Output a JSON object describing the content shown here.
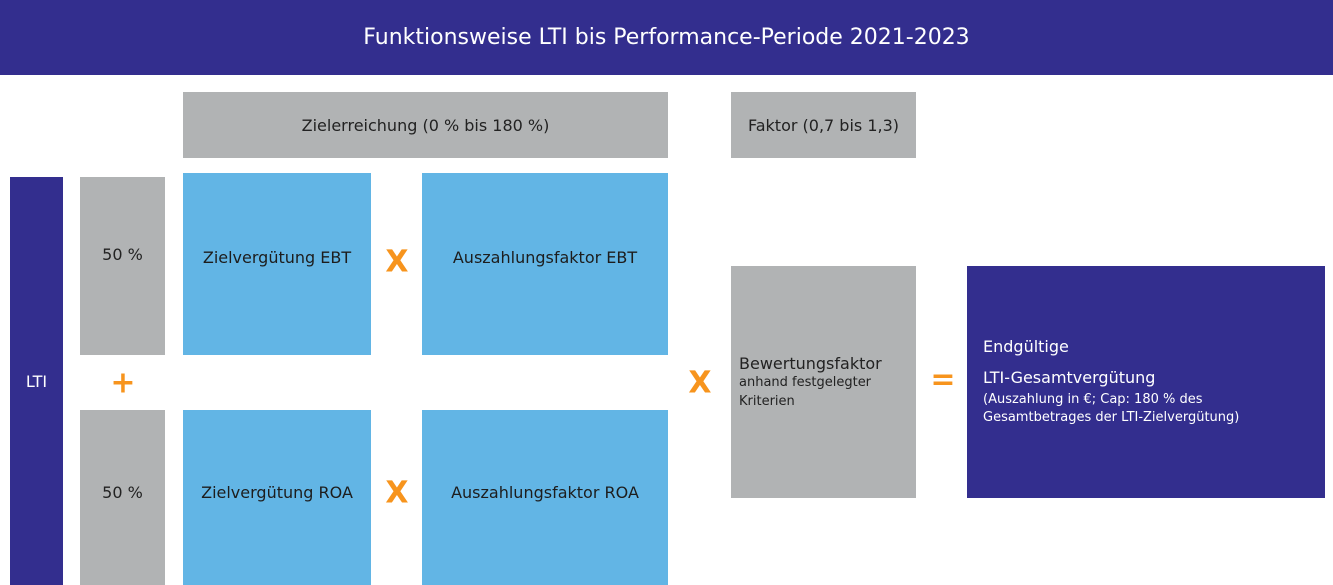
{
  "header": {
    "title": "Funktionsweise LTI bis Performance-Periode 2021-2023"
  },
  "target_achievement": "Zielerreichung (0 % bis 180 %)",
  "factor": "Faktor (0,7 bis 1,3)",
  "lti": "LTI",
  "ebt_share": "50 %",
  "roa_share": "50 %",
  "ebt": {
    "target": "Zielvergütung EBT",
    "operator": "X",
    "payout": "Auszahlungsfaktor EBT"
  },
  "roa": {
    "target": "Zielvergütung ROA",
    "operator": "X",
    "payout": "Auszahlungsfaktor ROA"
  },
  "plus": "+",
  "multiply": "X",
  "equals": "=",
  "rating": {
    "title": "Bewertungsfaktor",
    "lines": [
      "anhand festgelegter",
      "Kriterien"
    ]
  },
  "final": {
    "lines": [
      "Endgültige",
      "LTI-Gesamtvergütung"
    ],
    "note": [
      "(Auszahlung in €; Cap: 180 % des",
      "Gesamtbetrages der LTI-Zielvergütung)"
    ]
  }
}
